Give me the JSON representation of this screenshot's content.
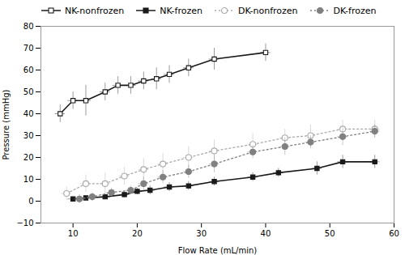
{
  "chart_data": {
    "type": "line",
    "xlabel": "Flow Rate (mL/min)",
    "ylabel": "Pressure (mmHg)",
    "xlim": [
      5,
      60
    ],
    "ylim": [
      -10,
      80
    ],
    "xticks": [
      10,
      20,
      30,
      40,
      50,
      60
    ],
    "yticks": [
      -10,
      0,
      10,
      20,
      30,
      40,
      50,
      60,
      70,
      80
    ],
    "grid": false,
    "legend": "upper left",
    "series": [
      {
        "name": "NK-nonfrozen",
        "color": "#1a1a1a",
        "marker": "open-square",
        "line_style": "solid",
        "x": [
          8,
          10,
          12,
          15,
          17,
          19,
          21,
          23,
          25,
          28,
          32,
          40
        ],
        "values": [
          40,
          46,
          46,
          50,
          53,
          53,
          55,
          56,
          58,
          61,
          65,
          68
        ],
        "xerr": [
          0.8,
          0.8,
          0.8,
          0.8,
          0.8,
          0.8,
          0.8,
          0.8,
          0.8,
          0.8,
          0.8,
          0.8
        ],
        "yerr": [
          4,
          4,
          7,
          4,
          4,
          4,
          4,
          5,
          4,
          4,
          5,
          4
        ]
      },
      {
        "name": "NK-frozen",
        "color": "#1a1a1a",
        "marker": "square",
        "line_style": "solid",
        "x": [
          10,
          12,
          15,
          18,
          20,
          22,
          25,
          28,
          32,
          38,
          42,
          48,
          52,
          57
        ],
        "values": [
          1,
          1.5,
          2,
          3,
          4.5,
          5,
          6.5,
          7,
          9,
          11,
          13,
          15,
          18,
          18
        ],
        "xerr": [
          0.8,
          0.8,
          0.8,
          0.8,
          0.8,
          0.8,
          0.8,
          0.8,
          0.8,
          0.8,
          0.8,
          0.8,
          0.8,
          0.8
        ],
        "yerr": [
          1,
          1,
          1,
          1.5,
          1.5,
          2,
          2,
          2,
          2,
          2,
          2,
          3,
          3,
          3
        ]
      },
      {
        "name": "DK-nonfrozen",
        "color": "#aaaaaa",
        "marker": "open-circle",
        "line_style": "dotted",
        "x": [
          9,
          12,
          15,
          18,
          21,
          24,
          28,
          32,
          38,
          43,
          47,
          52,
          57
        ],
        "values": [
          3.5,
          8,
          8,
          11.5,
          14.5,
          17,
          20,
          23,
          26,
          29,
          30,
          33,
          33
        ],
        "xerr": [
          0.8,
          0.8,
          0.8,
          0.8,
          0.8,
          0.8,
          0.8,
          0.8,
          0.8,
          0.8,
          0.8,
          0.8,
          0.8
        ],
        "yerr": [
          3,
          4,
          5,
          4,
          5,
          5,
          5,
          5,
          5,
          4,
          5,
          4,
          4
        ]
      },
      {
        "name": "DK-frozen",
        "color": "#808080",
        "marker": "circle",
        "line_style": "dotted",
        "x": [
          11,
          13,
          16,
          19,
          21,
          24,
          28,
          32,
          38,
          43,
          47,
          52,
          57
        ],
        "values": [
          1,
          2,
          4,
          5,
          8,
          11,
          13.5,
          17,
          22.5,
          25,
          27,
          29.5,
          32
        ],
        "xerr": [
          0.8,
          0.8,
          0.8,
          0.8,
          0.8,
          0.8,
          0.8,
          0.8,
          0.8,
          0.8,
          0.8,
          0.8,
          0.8
        ],
        "yerr": [
          2,
          2,
          2,
          2,
          3,
          3,
          3,
          4,
          3,
          4,
          3,
          4,
          3
        ]
      }
    ]
  }
}
